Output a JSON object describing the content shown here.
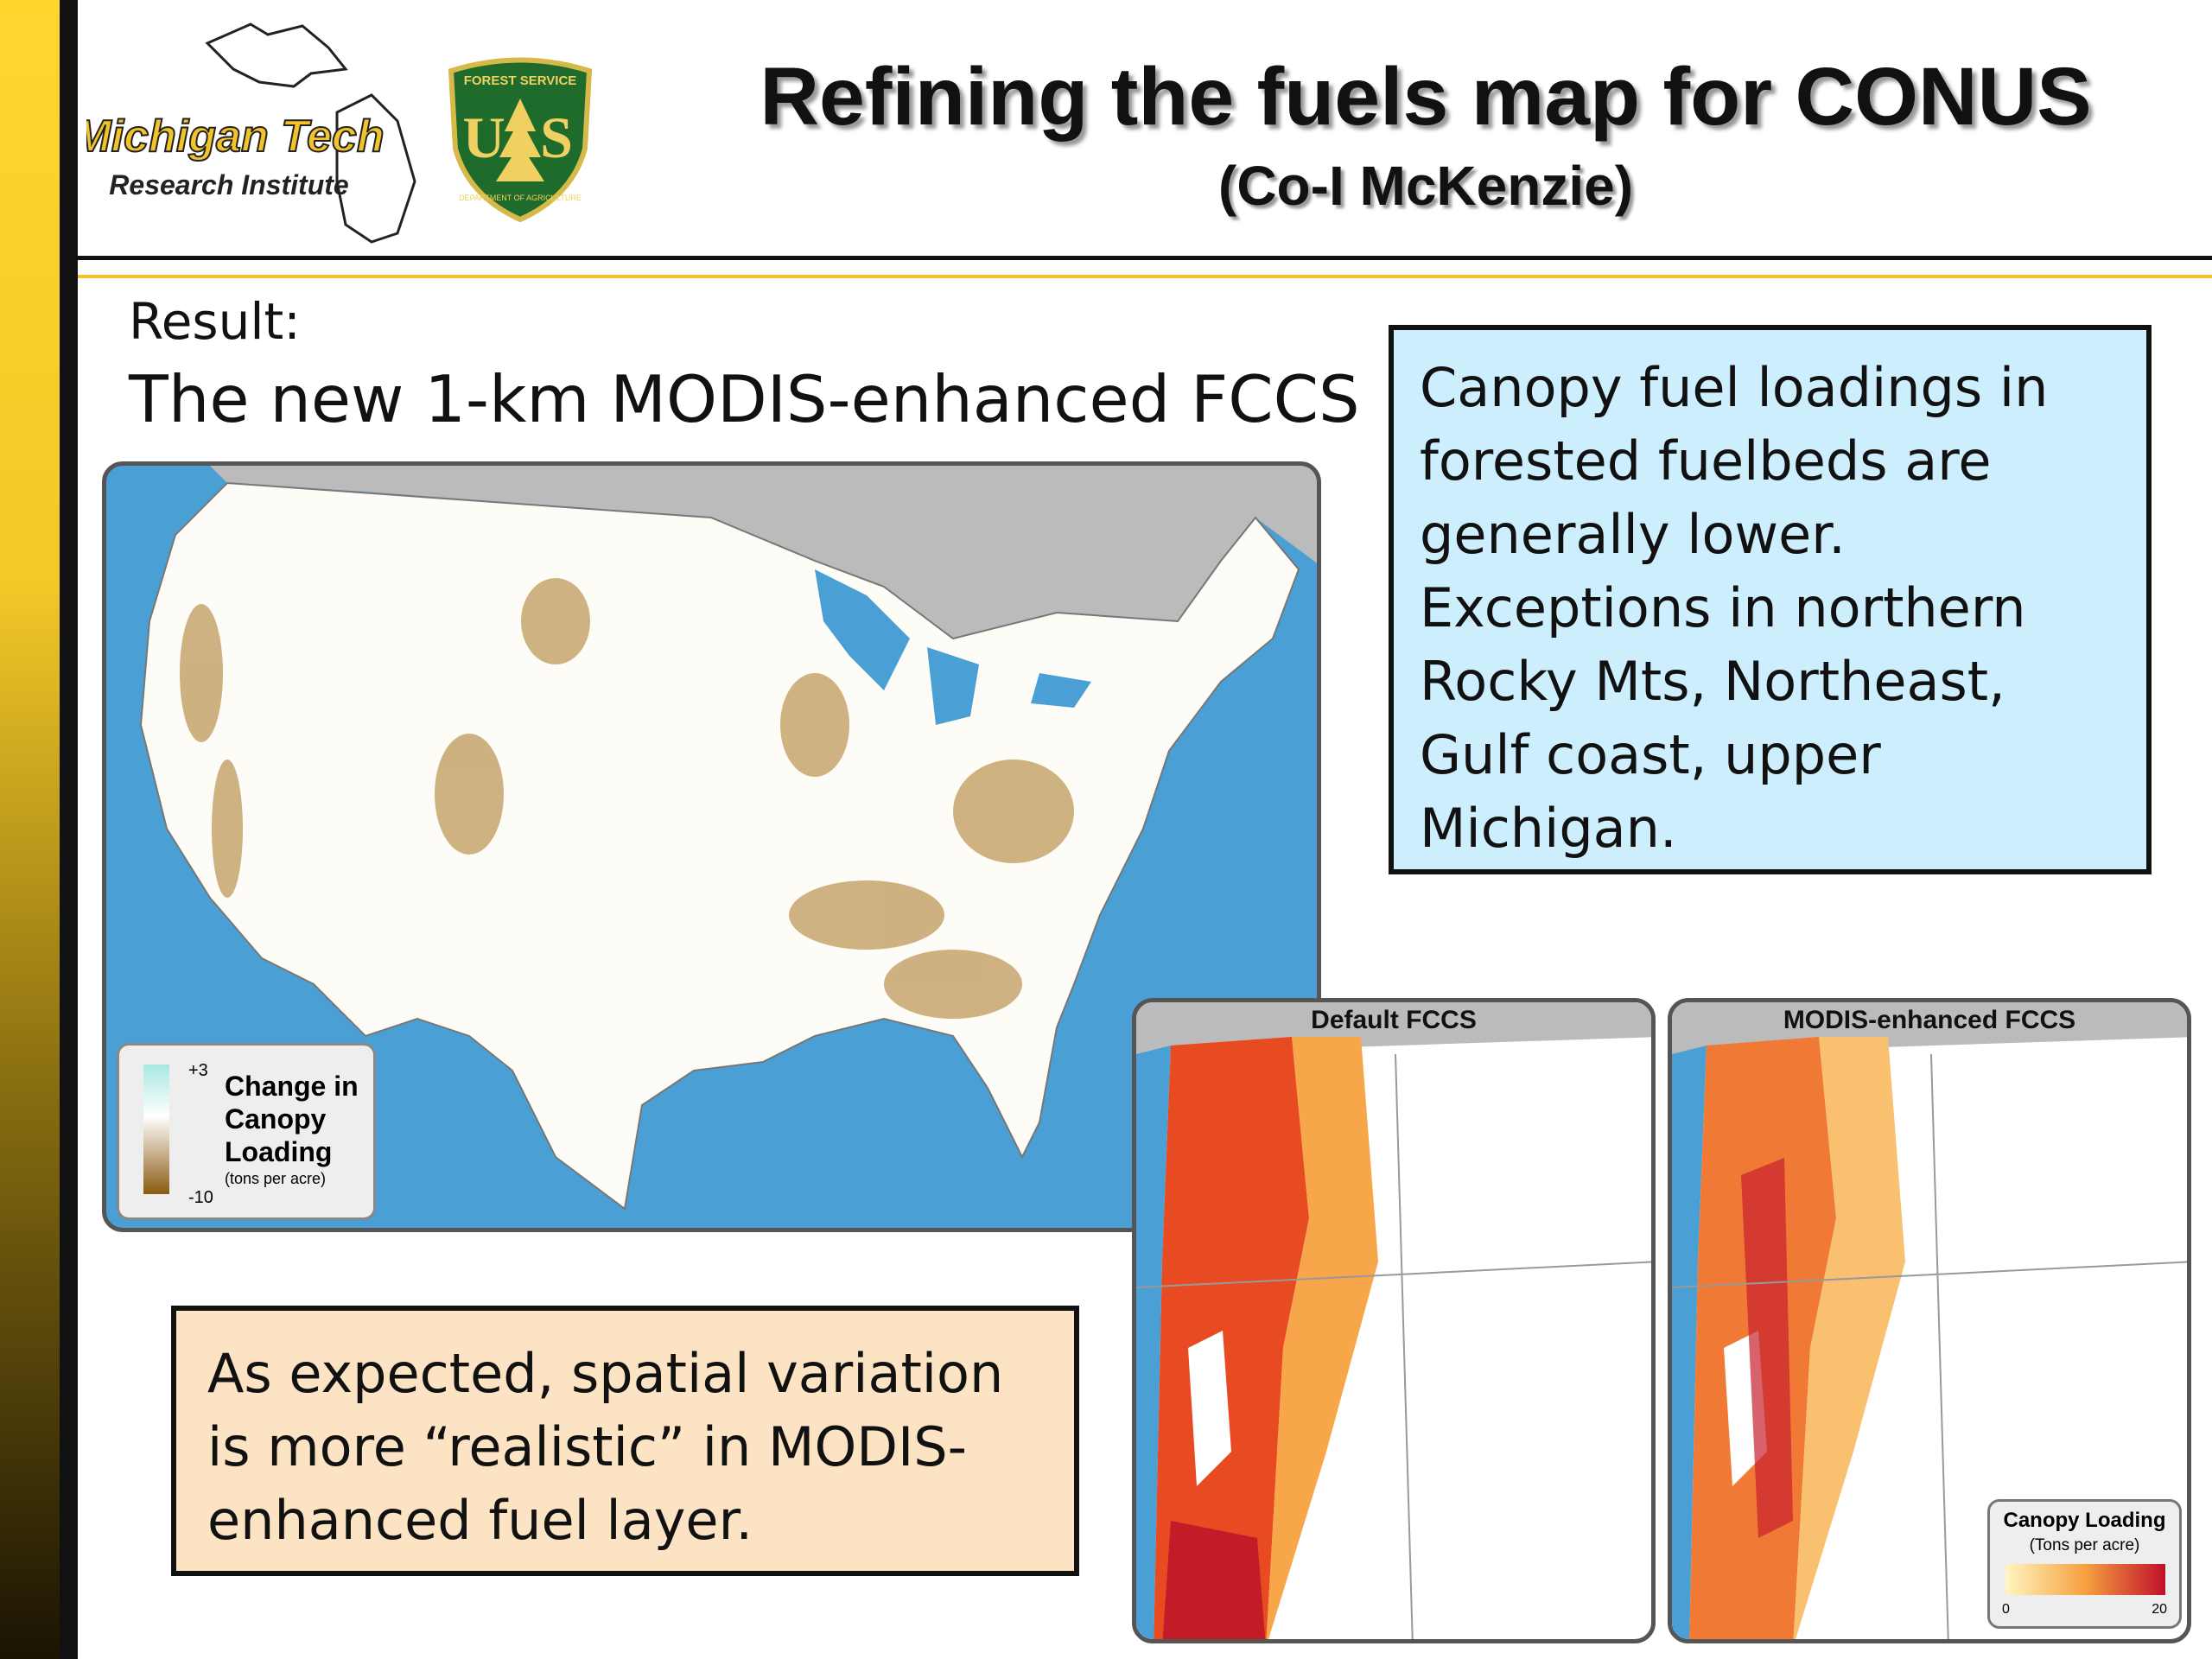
{
  "header": {
    "title": "Refining the fuels map for CONUS",
    "subtitle": "(Co-I McKenzie)"
  },
  "logos": {
    "mtri": {
      "name": "Michigan Tech",
      "subname": "Research Institute"
    },
    "usfs": {
      "top": "FOREST SERVICE",
      "left_letter": "U",
      "right_letter": "S",
      "bottom": "DEPARTMENT OF AGRICULTURE"
    }
  },
  "body": {
    "label": "Result:",
    "heading": "The new 1-km MODIS-enhanced FCCS"
  },
  "callouts": [
    {
      "text": "Canopy fuel loadings in forested fuelbeds are generally lower. Exceptions in northern Rocky Mts, Northeast, Gulf coast, upper Michigan."
    },
    {
      "text": "As expected, spatial variation is more “realistic” in MODIS-enhanced fuel layer."
    }
  ],
  "conus_map": {
    "legend": {
      "max": "+3",
      "min": "-10",
      "title": "Change in Canopy Loading",
      "units": "(tons per acre)"
    }
  },
  "comparison_maps": [
    {
      "title": "Default FCCS"
    },
    {
      "title": "MODIS-enhanced FCCS"
    }
  ],
  "comparison_legend": {
    "title": "Canopy Loading",
    "units": "(Tons per acre)",
    "min": "0",
    "max": "20"
  }
}
